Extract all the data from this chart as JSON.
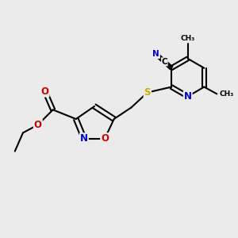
{
  "bg_color": "#ebebeb",
  "bond_color": "#000000",
  "bond_width": 1.5,
  "atom_colors": {
    "N": "#0000cc",
    "O": "#cc0000",
    "S": "#ccaa00",
    "C": "#000000"
  },
  "font_size": 8.5,
  "fig_size": [
    3.0,
    3.0
  ],
  "dpi": 100
}
